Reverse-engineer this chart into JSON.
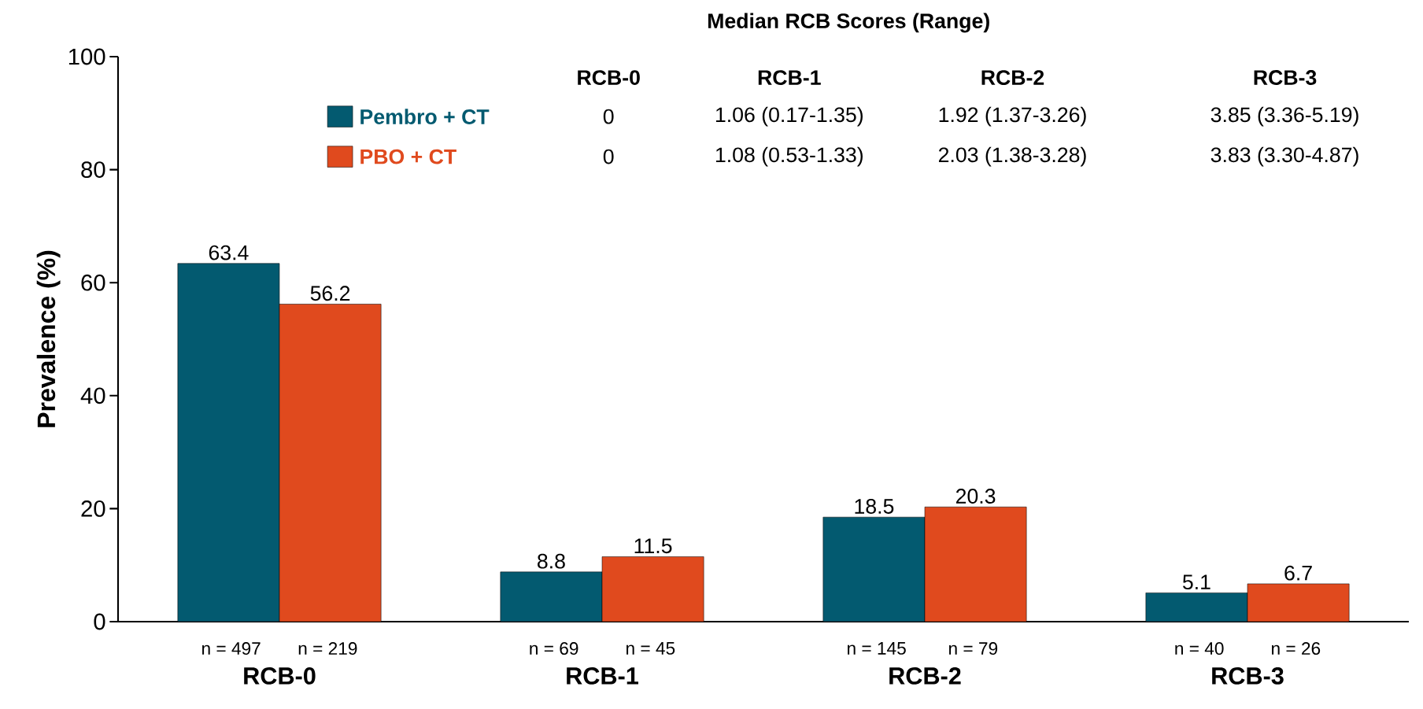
{
  "chart_data": {
    "type": "bar",
    "ylabel": "Prevalence (%)",
    "categories": [
      "RCB-0",
      "RCB-1",
      "RCB-2",
      "RCB-3"
    ],
    "series": [
      {
        "name": "Pembro + CT",
        "color": "#035a70",
        "values": [
          63.4,
          8.8,
          18.5,
          5.1
        ]
      },
      {
        "name": "PBO + CT",
        "color": "#e04a1e",
        "values": [
          56.2,
          11.5,
          20.3,
          6.7
        ]
      }
    ],
    "ylim": [
      0,
      100
    ],
    "yticks": [
      0,
      20,
      40,
      60,
      80,
      100
    ],
    "data_labels": true,
    "legend": "top",
    "grid": false,
    "annotations": [
      "Median RCB Scores (Range)",
      "RCB-0",
      "RCB-1",
      "RCB-2",
      "RCB-3",
      "0",
      "1.06 (0.17-1.35)",
      "1.92 (1.37-3.26)",
      "3.85 (3.36-5.19)",
      "0",
      "1.08 (0.53-1.33)",
      "2.03 (1.38-3.28)",
      "3.83 (3.30-4.87)",
      "n = 497",
      "n = 219",
      "n = 69",
      "n = 45",
      "n = 145",
      "n = 79",
      "n = 40",
      "n = 26"
    ]
  }
}
